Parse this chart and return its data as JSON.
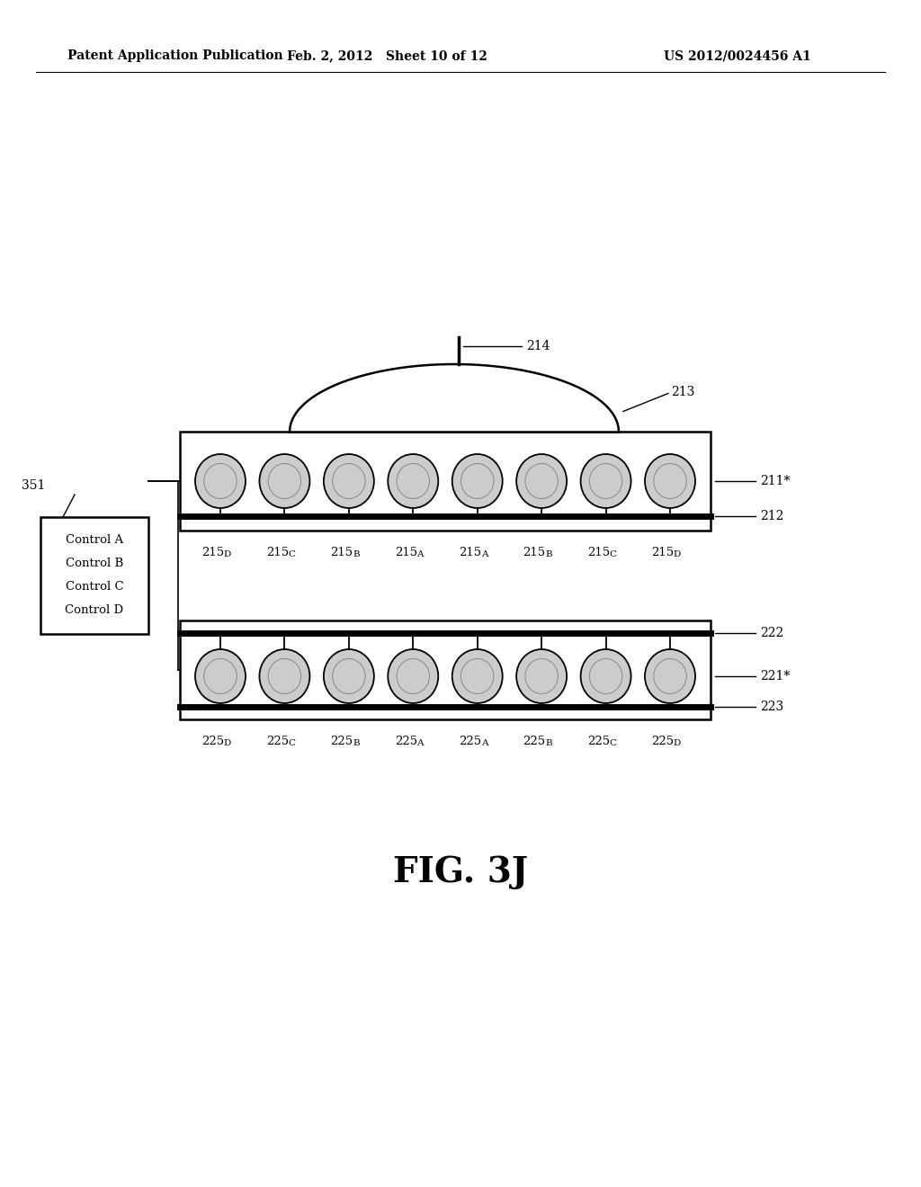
{
  "bg_color": "#ffffff",
  "header_left": "Patent Application Publication",
  "header_mid": "Feb. 2, 2012   Sheet 10 of 12",
  "header_right": "US 2012/0024456 A1",
  "fig_label": "FIG. 3J",
  "top_layer": {
    "label_211": "211*",
    "label_212": "212",
    "dome_label": "213",
    "rod_label": "214",
    "bump_labels": [
      "215D",
      "215C",
      "215B",
      "215A",
      "215A",
      "215B",
      "215C",
      "215D"
    ]
  },
  "bottom_layer": {
    "label_221": "221*",
    "label_222": "222",
    "label_223": "223",
    "bump_labels": [
      "225D",
      "225C",
      "225B",
      "225A",
      "225A",
      "225B",
      "225C",
      "225D"
    ]
  },
  "control_box": {
    "lines": [
      "Control A",
      "Control B",
      "Control C",
      "Control D"
    ],
    "label": "351"
  }
}
